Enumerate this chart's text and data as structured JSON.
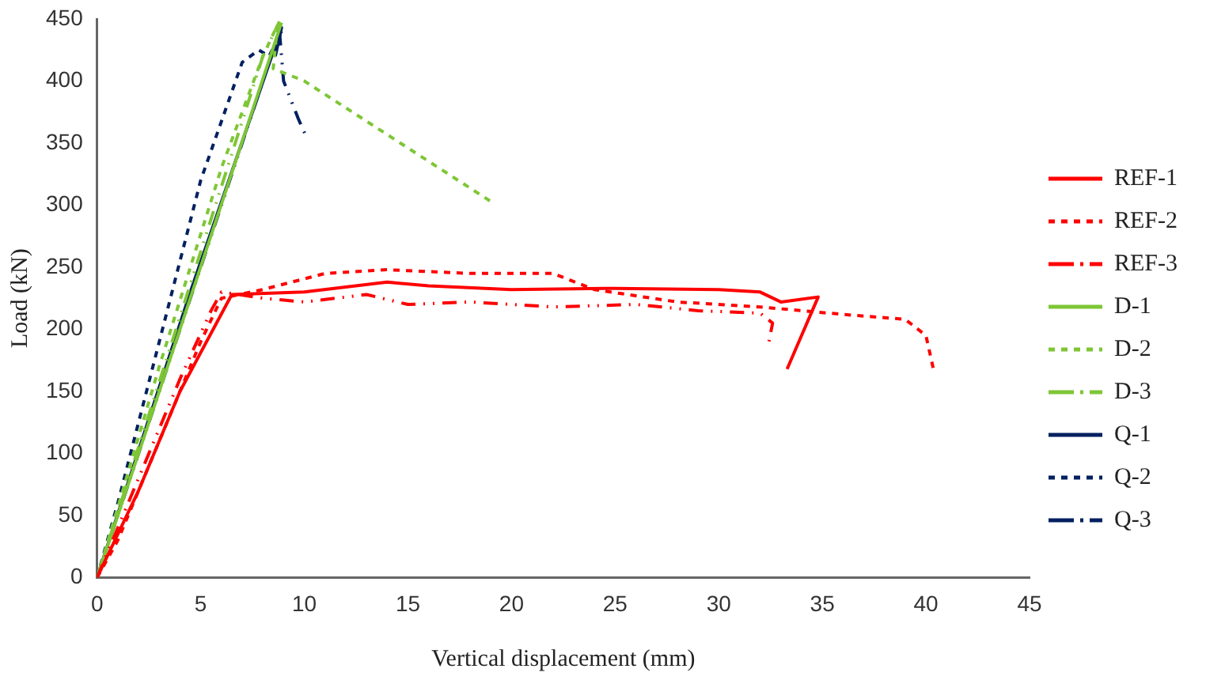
{
  "chart_data": {
    "type": "line",
    "xlabel": "Vertical displacement (mm)",
    "ylabel": "Load (kN)",
    "xlim": [
      0,
      45
    ],
    "ylim": [
      0,
      450
    ],
    "xticks": [
      0,
      5,
      10,
      15,
      20,
      25,
      30,
      35,
      40,
      45
    ],
    "yticks": [
      0,
      50,
      100,
      150,
      200,
      250,
      300,
      350,
      400,
      450
    ],
    "grid": false,
    "legend": "right",
    "marker": "none",
    "series": [
      {
        "name": "REF-1",
        "color": "#ff0000",
        "line_style": "solid",
        "x": [
          0,
          2,
          4,
          6.5,
          10,
          14,
          16,
          20,
          25,
          30,
          32,
          33,
          34.8,
          33.3
        ],
        "values": [
          0,
          70,
          150,
          228,
          230,
          238,
          235,
          232,
          233,
          232,
          230,
          222,
          226,
          168
        ]
      },
      {
        "name": "REF-2",
        "color": "#ff0000",
        "line_style": "dashed",
        "x": [
          0,
          1,
          3,
          5,
          6,
          8,
          11,
          14,
          18,
          22,
          24,
          28,
          32,
          36,
          39,
          40,
          40.4
        ],
        "values": [
          0,
          30,
          110,
          190,
          225,
          232,
          245,
          248,
          245,
          245,
          232,
          222,
          218,
          212,
          208,
          195,
          165
        ]
      },
      {
        "name": "REF-3",
        "color": "#ff0000",
        "line_style": "dotted",
        "x": [
          0,
          2,
          4,
          5.5,
          6,
          8,
          10,
          13,
          15,
          18,
          22,
          26,
          29,
          32,
          32.6,
          32.4
        ],
        "values": [
          0,
          80,
          160,
          215,
          230,
          225,
          222,
          228,
          220,
          222,
          218,
          220,
          215,
          213,
          205,
          188
        ]
      },
      {
        "name": "D-1",
        "color": "#7ec636",
        "line_style": "solid",
        "x": [
          0,
          4,
          8.9
        ],
        "values": [
          0,
          200,
          447
        ]
      },
      {
        "name": "D-2",
        "color": "#7ec636",
        "line_style": "dashed",
        "x": [
          0,
          3,
          6,
          8,
          8.7,
          8.5,
          10,
          19
        ],
        "values": [
          0,
          170,
          330,
          420,
          445,
          410,
          400,
          303
        ]
      },
      {
        "name": "D-3",
        "color": "#7ec636",
        "line_style": "dotted",
        "x": [
          0,
          4,
          8,
          8.8
        ],
        "values": [
          0,
          210,
          420,
          448
        ]
      },
      {
        "name": "Q-1",
        "color": "#002060",
        "line_style": "solid",
        "x": [
          0,
          4.5,
          8.9,
          8.6
        ],
        "values": [
          0,
          230,
          443,
          420
        ]
      },
      {
        "name": "Q-2",
        "color": "#002060",
        "line_style": "dashed",
        "x": [
          0,
          1,
          3,
          5,
          7,
          7.8,
          8.3,
          8.9
        ],
        "values": [
          0,
          60,
          190,
          320,
          415,
          425,
          420,
          440
        ]
      },
      {
        "name": "Q-3",
        "color": "#002060",
        "line_style": "dotted",
        "x": [
          0,
          4,
          8.8,
          9,
          9.7,
          10.1
        ],
        "values": [
          0,
          200,
          440,
          400,
          370,
          355
        ]
      }
    ]
  }
}
